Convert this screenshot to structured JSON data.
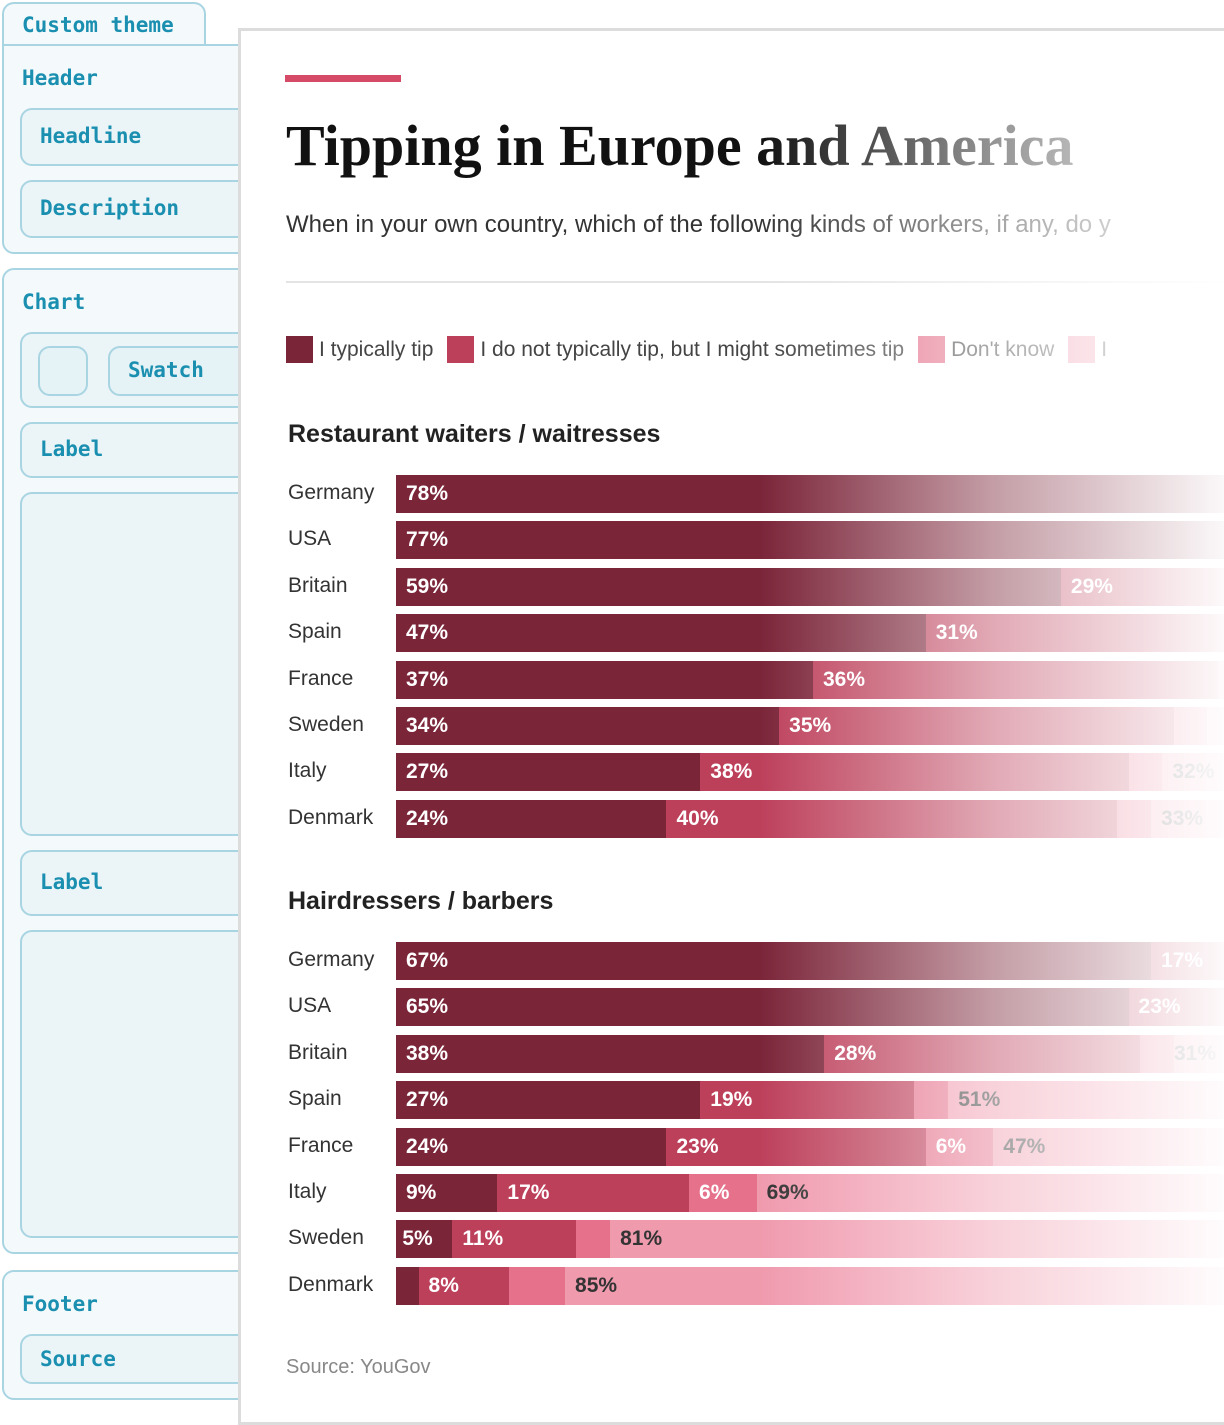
{
  "editor": {
    "tab": "Custom theme",
    "header_group": {
      "title": "Header",
      "items": [
        "Headline",
        "Description"
      ]
    },
    "chart_group": {
      "title": "Chart",
      "swatch": "Swatch",
      "label1": "Label",
      "label2": "Label"
    },
    "footer_group": {
      "title": "Footer",
      "items": [
        "Source"
      ]
    }
  },
  "colors": {
    "accent": "#d44a67",
    "typically": "#7b2539",
    "sometimes": "#bd405b",
    "dontknow": "#e5718b",
    "never": "#f09aae"
  },
  "chart_data": {
    "type": "bar",
    "orientation": "horizontal-stacked",
    "title": "Tipping in Europe and America",
    "subtitle": "When in your own country, which of the following kinds of workers, if any, do y",
    "legend": [
      "I typically tip",
      "I do not typically tip, but I might sometimes tip",
      "Don't know",
      "I"
    ],
    "legend_placement": "top",
    "panels": [
      {
        "title": "Restaurant waiters / waitresses",
        "rows": [
          {
            "country": "Germany",
            "values": [
              78,
              null,
              null,
              null
            ]
          },
          {
            "country": "USA",
            "values": [
              77,
              null,
              null,
              null
            ]
          },
          {
            "country": "Britain",
            "values": [
              59,
              29,
              null,
              null
            ]
          },
          {
            "country": "Spain",
            "values": [
              47,
              31,
              null,
              null
            ]
          },
          {
            "country": "France",
            "values": [
              37,
              36,
              null,
              null
            ]
          },
          {
            "country": "Sweden",
            "values": [
              34,
              35,
              3,
              null
            ]
          },
          {
            "country": "Italy",
            "values": [
              27,
              38,
              3,
              32
            ]
          },
          {
            "country": "Denmark",
            "values": [
              24,
              40,
              3,
              33
            ]
          }
        ]
      },
      {
        "title": "Hairdressers / barbers",
        "rows": [
          {
            "country": "Germany",
            "values": [
              67,
              17,
              null,
              null
            ]
          },
          {
            "country": "USA",
            "values": [
              65,
              23,
              null,
              null
            ]
          },
          {
            "country": "Britain",
            "values": [
              38,
              28,
              3,
              31
            ]
          },
          {
            "country": "Spain",
            "values": [
              27,
              19,
              3,
              51
            ]
          },
          {
            "country": "France",
            "values": [
              24,
              23,
              6,
              47
            ]
          },
          {
            "country": "Italy",
            "values": [
              9,
              17,
              6,
              69
            ]
          },
          {
            "country": "Sweden",
            "values": [
              5,
              11,
              3,
              81
            ]
          },
          {
            "country": "Denmark",
            "values": [
              2,
              8,
              5,
              85
            ]
          }
        ]
      }
    ],
    "unlabeled_segments": "values under 5% except where printed are not labeled"
  },
  "footer": {
    "source": "Source: YouGov"
  }
}
